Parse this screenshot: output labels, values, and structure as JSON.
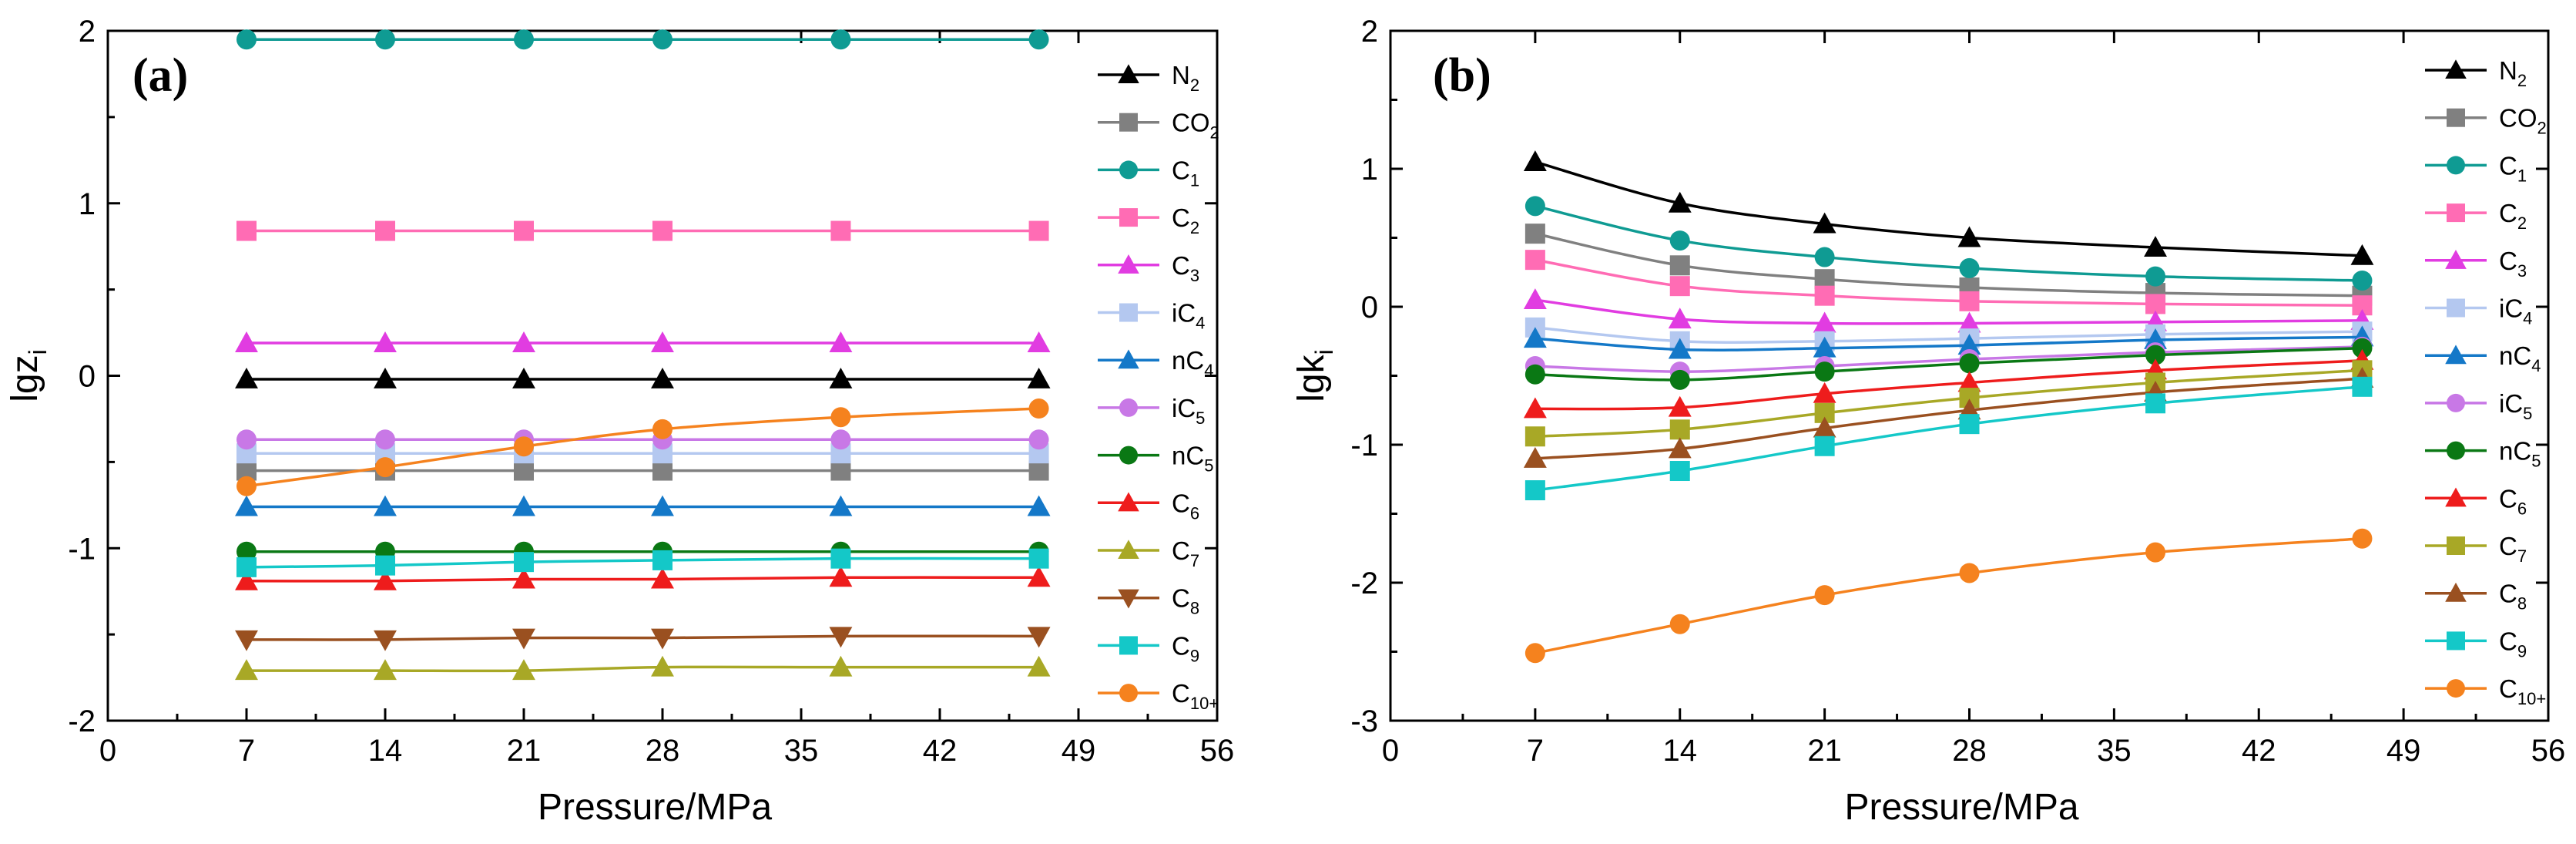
{
  "chart_data": [
    {
      "type": "line",
      "panel_label": "(a)",
      "xlabel": "Pressure/MPa",
      "ylabel_main": "lgz",
      "ylabel_sub": "i",
      "xlim": [
        0,
        56
      ],
      "ylim": [
        -2,
        2
      ],
      "xticks": [
        0,
        7,
        14,
        21,
        28,
        35,
        42,
        49,
        56
      ],
      "xtick_labels": [
        "0",
        "7",
        "14",
        "21",
        "28",
        "35",
        "42",
        "49",
        "56"
      ],
      "yticks": [
        -2,
        -1,
        0,
        1,
        2
      ],
      "ytick_labels": [
        "-2",
        "-1",
        "0",
        "1",
        "2"
      ],
      "legend_position": "right",
      "x": [
        7,
        14,
        21,
        28,
        37,
        47
      ],
      "series": [
        {
          "main": "N",
          "sub": "2",
          "color": "#000000",
          "marker": "triangle",
          "values": [
            -0.02,
            -0.02,
            -0.02,
            -0.02,
            -0.02,
            -0.02
          ]
        },
        {
          "main": "CO",
          "sub": "2",
          "color": "#808080",
          "marker": "square",
          "values": [
            -0.55,
            -0.55,
            -0.55,
            -0.55,
            -0.55,
            -0.55
          ]
        },
        {
          "main": "C",
          "sub": "1",
          "color": "#0f9b93",
          "marker": "circle",
          "values": [
            1.95,
            1.95,
            1.95,
            1.95,
            1.95,
            1.95
          ]
        },
        {
          "main": "C",
          "sub": "2",
          "color": "#ff6cb4",
          "marker": "square",
          "values": [
            0.84,
            0.84,
            0.84,
            0.84,
            0.84,
            0.84
          ]
        },
        {
          "main": "C",
          "sub": "3",
          "color": "#e13ce1",
          "marker": "triangle",
          "values": [
            0.19,
            0.19,
            0.19,
            0.19,
            0.19,
            0.19
          ]
        },
        {
          "main": "iC",
          "sub": "4",
          "color": "#b4c8f0",
          "marker": "square",
          "values": [
            -0.45,
            -0.45,
            -0.45,
            -0.45,
            -0.45,
            -0.45
          ]
        },
        {
          "main": "nC",
          "sub": "4",
          "color": "#1478c8",
          "marker": "triangle",
          "values": [
            -0.76,
            -0.76,
            -0.76,
            -0.76,
            -0.76,
            -0.76
          ]
        },
        {
          "main": "iC",
          "sub": "5",
          "color": "#c878e6",
          "marker": "circle",
          "values": [
            -0.37,
            -0.37,
            -0.37,
            -0.37,
            -0.37,
            -0.37
          ]
        },
        {
          "main": "nC",
          "sub": "5",
          "color": "#0a7814",
          "marker": "circle",
          "values": [
            -1.02,
            -1.02,
            -1.02,
            -1.02,
            -1.02,
            -1.02
          ]
        },
        {
          "main": "C",
          "sub": "6",
          "color": "#ee1c1c",
          "marker": "triangle",
          "values": [
            -1.19,
            -1.19,
            -1.18,
            -1.18,
            -1.17,
            -1.17
          ]
        },
        {
          "main": "C",
          "sub": "7",
          "color": "#a8a826",
          "marker": "triangle",
          "values": [
            -1.71,
            -1.71,
            -1.71,
            -1.69,
            -1.69,
            -1.69
          ]
        },
        {
          "main": "C",
          "sub": "8",
          "color": "#9a5020",
          "marker": "triangle-down",
          "values": [
            -1.53,
            -1.53,
            -1.52,
            -1.52,
            -1.51,
            -1.51
          ]
        },
        {
          "main": "C",
          "sub": "9",
          "color": "#14c8c8",
          "marker": "square",
          "values": [
            -1.11,
            -1.1,
            -1.08,
            -1.07,
            -1.06,
            -1.06
          ]
        },
        {
          "main": "C",
          "sub": "10+",
          "color": "#f5821e",
          "marker": "circle",
          "values": [
            -0.64,
            -0.53,
            -0.41,
            -0.31,
            -0.24,
            -0.19
          ]
        }
      ]
    },
    {
      "type": "line",
      "panel_label": "(b)",
      "xlabel": "Pressure/MPa",
      "ylabel_main": "lgk",
      "ylabel_sub": "i",
      "xlim": [
        0,
        56
      ],
      "ylim": [
        -3,
        2
      ],
      "xticks": [
        0,
        7,
        14,
        21,
        28,
        35,
        42,
        49,
        56
      ],
      "xtick_labels": [
        "0",
        "7",
        "14",
        "21",
        "28",
        "35",
        "42",
        "49",
        "56"
      ],
      "yticks": [
        -3,
        -2,
        -1,
        0,
        1,
        2
      ],
      "ytick_labels": [
        "-3",
        "-2",
        "-1",
        "0",
        "1",
        "2"
      ],
      "legend_position": "right",
      "x": [
        7,
        14,
        21,
        28,
        37,
        47
      ],
      "series": [
        {
          "main": "N",
          "sub": "2",
          "color": "#000000",
          "marker": "triangle",
          "values": [
            1.05,
            0.75,
            0.6,
            0.5,
            0.43,
            0.37
          ]
        },
        {
          "main": "CO",
          "sub": "2",
          "color": "#808080",
          "marker": "square",
          "values": [
            0.53,
            0.3,
            0.2,
            0.14,
            0.1,
            0.08
          ]
        },
        {
          "main": "C",
          "sub": "1",
          "color": "#0f9b93",
          "marker": "circle",
          "values": [
            0.73,
            0.48,
            0.36,
            0.28,
            0.22,
            0.19
          ]
        },
        {
          "main": "C",
          "sub": "2",
          "color": "#ff6cb4",
          "marker": "square",
          "values": [
            0.34,
            0.15,
            0.08,
            0.04,
            0.02,
            0.01
          ]
        },
        {
          "main": "C",
          "sub": "3",
          "color": "#e13ce1",
          "marker": "triangle",
          "values": [
            0.05,
            -0.09,
            -0.12,
            -0.12,
            -0.11,
            -0.1
          ]
        },
        {
          "main": "iC",
          "sub": "4",
          "color": "#b4c8f0",
          "marker": "square",
          "values": [
            -0.15,
            -0.25,
            -0.25,
            -0.23,
            -0.2,
            -0.18
          ]
        },
        {
          "main": "nC",
          "sub": "4",
          "color": "#1478c8",
          "marker": "triangle",
          "values": [
            -0.23,
            -0.31,
            -0.3,
            -0.28,
            -0.24,
            -0.22
          ]
        },
        {
          "main": "iC",
          "sub": "5",
          "color": "#c878e6",
          "marker": "circle",
          "values": [
            -0.43,
            -0.47,
            -0.43,
            -0.38,
            -0.33,
            -0.29
          ]
        },
        {
          "main": "nC",
          "sub": "5",
          "color": "#0a7814",
          "marker": "circle",
          "values": [
            -0.49,
            -0.53,
            -0.47,
            -0.41,
            -0.35,
            -0.3
          ]
        },
        {
          "main": "C",
          "sub": "6",
          "color": "#ee1c1c",
          "marker": "triangle",
          "values": [
            -0.74,
            -0.73,
            -0.63,
            -0.55,
            -0.46,
            -0.39
          ]
        },
        {
          "main": "C",
          "sub": "7",
          "color": "#a8a826",
          "marker": "square",
          "values": [
            -0.94,
            -0.89,
            -0.77,
            -0.66,
            -0.55,
            -0.46
          ]
        },
        {
          "main": "C",
          "sub": "8",
          "color": "#9a5020",
          "marker": "triangle",
          "values": [
            -1.1,
            -1.03,
            -0.88,
            -0.75,
            -0.62,
            -0.52
          ]
        },
        {
          "main": "C",
          "sub": "9",
          "color": "#14c8c8",
          "marker": "square",
          "values": [
            -1.33,
            -1.19,
            -1.01,
            -0.85,
            -0.7,
            -0.58
          ]
        },
        {
          "main": "C",
          "sub": "10+",
          "color": "#f5821e",
          "marker": "circle",
          "values": [
            -2.51,
            -2.3,
            -2.09,
            -1.93,
            -1.78,
            -1.68
          ]
        }
      ]
    }
  ]
}
